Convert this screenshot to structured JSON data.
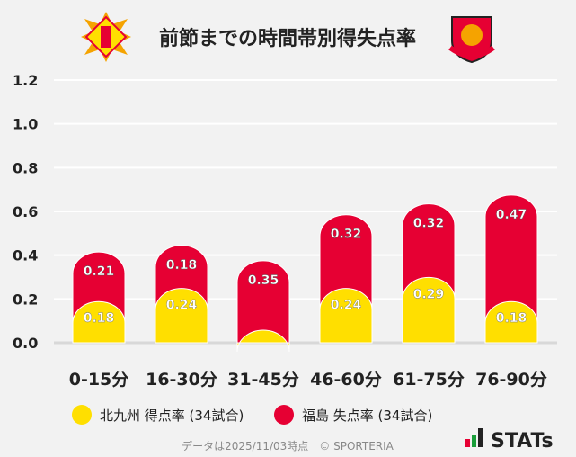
{
  "chart_data": {
    "type": "bar",
    "stacked": true,
    "title": "前節までの時間帯別得失点率",
    "categories": [
      "0-15分",
      "16-30分",
      "31-45分",
      "46-60分",
      "61-75分",
      "76-90分"
    ],
    "series": [
      {
        "name": "北九州 得点率 (34試合)",
        "color": "#ffdf00",
        "values": [
          0.18,
          0.24,
          0,
          0.24,
          0.29,
          0.18
        ]
      },
      {
        "name": "福島 失点率 (34試合)",
        "color": "#e60033",
        "values": [
          0.21,
          0.18,
          0.35,
          0.32,
          0.32,
          0.47
        ]
      }
    ],
    "yticks": [
      "0.0",
      "0.2",
      "0.4",
      "0.6",
      "0.8",
      "1.0",
      "1.2"
    ],
    "ylim": [
      0,
      1.2
    ],
    "grid": true,
    "legend": "bottom"
  },
  "footer": {
    "note": "データは2025/11/03時点　© SPORTERIA",
    "brand": "STATs"
  },
  "logos": {
    "left": "kitakyushu-emblem",
    "right": "fukushima-united-fc-emblem"
  }
}
